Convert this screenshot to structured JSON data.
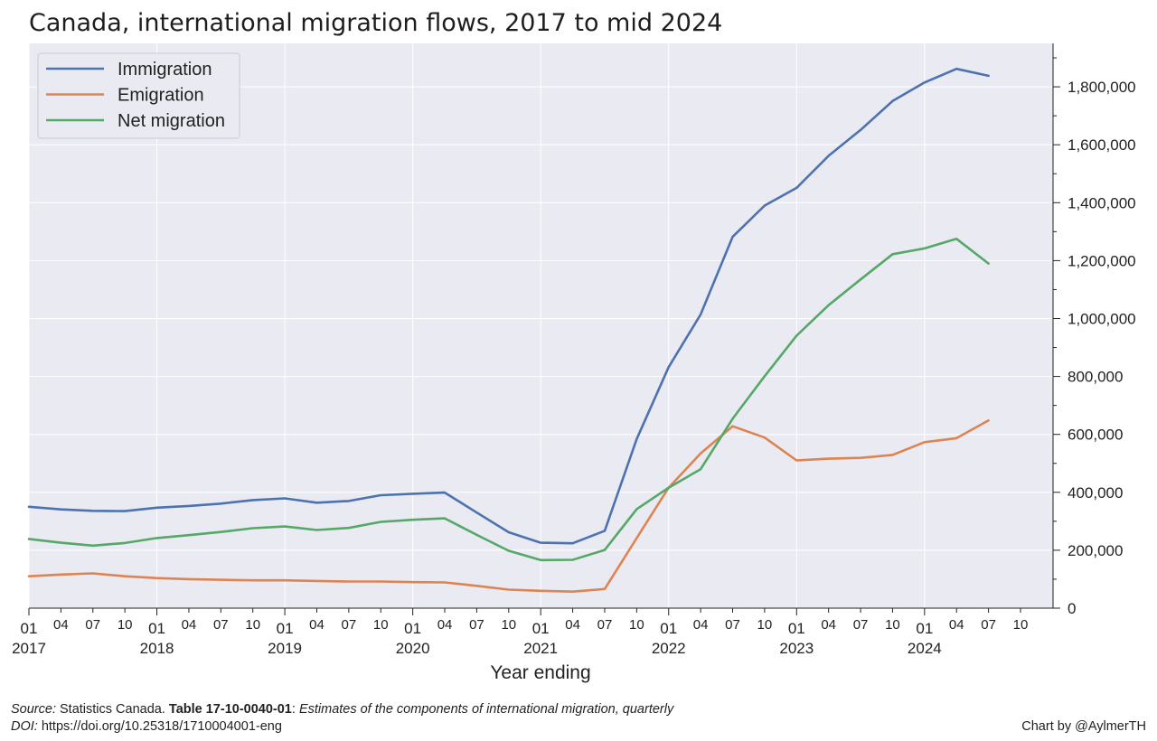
{
  "chart_data": {
    "type": "line",
    "title": "Canada, international migration flows, 2017 to mid 2024",
    "xlabel": "Year ending",
    "ylabel": "",
    "ylim": [
      0,
      1950000
    ],
    "y_ticks": [
      0,
      200000,
      400000,
      600000,
      800000,
      1000000,
      1200000,
      1400000,
      1600000,
      1800000
    ],
    "y_tick_labels": [
      "0",
      "200,000",
      "400,000",
      "600,000",
      "800,000",
      "1,000,000",
      "1,200,000",
      "1,400,000",
      "1,600,000",
      "1,800,000"
    ],
    "y_axis_side": "right",
    "grid": true,
    "legend_position": "top-left",
    "x_tick_labels": [
      "01",
      "04",
      "07",
      "10",
      "01",
      "04",
      "07",
      "10",
      "01",
      "04",
      "07",
      "10",
      "01",
      "04",
      "07",
      "10",
      "01",
      "04",
      "07",
      "10",
      "01",
      "04",
      "07",
      "10",
      "01",
      "04",
      "07",
      "10",
      "01",
      "04",
      "07",
      "10"
    ],
    "x_year_labels": [
      "2017",
      "2018",
      "2019",
      "2020",
      "2021",
      "2022",
      "2023",
      "2024"
    ],
    "x": [
      "2017-01",
      "2017-04",
      "2017-07",
      "2017-10",
      "2018-01",
      "2018-04",
      "2018-07",
      "2018-10",
      "2019-01",
      "2019-04",
      "2019-07",
      "2019-10",
      "2020-01",
      "2020-04",
      "2020-07",
      "2020-10",
      "2021-01",
      "2021-04",
      "2021-07",
      "2021-10",
      "2022-01",
      "2022-04",
      "2022-07",
      "2022-10",
      "2023-01",
      "2023-04",
      "2023-07",
      "2023-10",
      "2024-01",
      "2024-04",
      "2024-07"
    ],
    "series": [
      {
        "name": "Immigration",
        "color": "#4c72b0",
        "values": [
          350000,
          341000,
          336000,
          335000,
          347000,
          353000,
          361000,
          373000,
          379000,
          364000,
          370000,
          390000,
          395000,
          399000,
          330000,
          262000,
          226000,
          224000,
          267000,
          584000,
          832000,
          1014000,
          1282000,
          1390000,
          1451000,
          1562000,
          1651000,
          1751000,
          1815000,
          1862000,
          1838000
        ]
      },
      {
        "name": "Emigration",
        "color": "#dd8452",
        "values": [
          110000,
          116000,
          120000,
          110000,
          104000,
          100000,
          98000,
          96000,
          96000,
          94000,
          92000,
          92000,
          90000,
          89000,
          77000,
          64000,
          60000,
          57000,
          66000,
          242000,
          416000,
          534000,
          628000,
          589000,
          510000,
          516000,
          519000,
          529000,
          573000,
          587000,
          648000
        ]
      },
      {
        "name": "Net migration",
        "color": "#55a868",
        "values": [
          239000,
          226000,
          216000,
          225000,
          242000,
          252000,
          263000,
          276000,
          282000,
          270000,
          277000,
          298000,
          305000,
          310000,
          253000,
          198000,
          166000,
          167000,
          201000,
          342000,
          416000,
          480000,
          654000,
          801000,
          941000,
          1046000,
          1135000,
          1222000,
          1242000,
          1275000,
          1190000
        ]
      }
    ]
  },
  "footer": {
    "source_label": "Source:",
    "source_org": "Statistics Canada.",
    "table_id": "Table 17-10-0040-01",
    "table_desc": "Estimates of the components of international migration, quarterly",
    "doi_label": "DOI:",
    "doi": "https://doi.org/10.25318/1710004001-eng",
    "credit": "Chart by @AylmerTH"
  }
}
